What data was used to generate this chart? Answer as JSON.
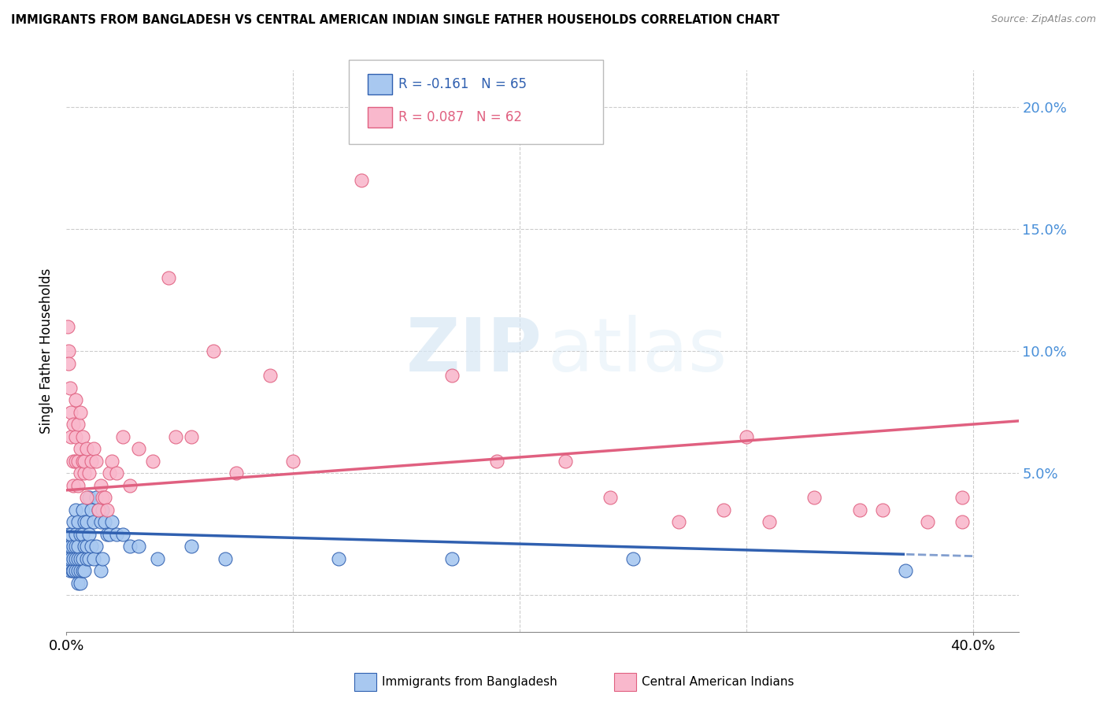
{
  "title": "IMMIGRANTS FROM BANGLADESH VS CENTRAL AMERICAN INDIAN SINGLE FATHER HOUSEHOLDS CORRELATION CHART",
  "source": "Source: ZipAtlas.com",
  "ylabel": "Single Father Households",
  "xlim": [
    0.0,
    0.42
  ],
  "ylim": [
    -0.015,
    0.215
  ],
  "yticks": [
    0.0,
    0.05,
    0.1,
    0.15,
    0.2
  ],
  "ytick_labels": [
    "",
    "5.0%",
    "10.0%",
    "15.0%",
    "20.0%"
  ],
  "xtick_positions": [
    0.0,
    0.4
  ],
  "xtick_labels": [
    "0.0%",
    "40.0%"
  ],
  "blue_color": "#A8C8F0",
  "pink_color": "#F9B8CC",
  "blue_line_color": "#3060B0",
  "pink_line_color": "#E06080",
  "legend_blue_R": "R = -0.161",
  "legend_blue_N": "N = 65",
  "legend_pink_R": "R = 0.087",
  "legend_pink_N": "N = 62",
  "watermark_zip": "ZIP",
  "watermark_atlas": "atlas",
  "blue_scatter_x": [
    0.0005,
    0.001,
    0.001,
    0.0015,
    0.002,
    0.002,
    0.002,
    0.0025,
    0.003,
    0.003,
    0.003,
    0.003,
    0.004,
    0.004,
    0.004,
    0.004,
    0.004,
    0.005,
    0.005,
    0.005,
    0.005,
    0.005,
    0.006,
    0.006,
    0.006,
    0.006,
    0.007,
    0.007,
    0.007,
    0.007,
    0.008,
    0.008,
    0.008,
    0.009,
    0.009,
    0.009,
    0.01,
    0.01,
    0.01,
    0.011,
    0.011,
    0.012,
    0.012,
    0.013,
    0.013,
    0.014,
    0.015,
    0.015,
    0.016,
    0.016,
    0.017,
    0.018,
    0.019,
    0.02,
    0.022,
    0.025,
    0.028,
    0.032,
    0.04,
    0.055,
    0.07,
    0.12,
    0.17,
    0.25,
    0.37
  ],
  "blue_scatter_y": [
    0.015,
    0.02,
    0.025,
    0.01,
    0.015,
    0.02,
    0.025,
    0.01,
    0.01,
    0.015,
    0.02,
    0.03,
    0.01,
    0.015,
    0.02,
    0.025,
    0.035,
    0.005,
    0.01,
    0.015,
    0.02,
    0.03,
    0.005,
    0.01,
    0.015,
    0.025,
    0.01,
    0.015,
    0.025,
    0.035,
    0.01,
    0.02,
    0.03,
    0.015,
    0.02,
    0.03,
    0.015,
    0.025,
    0.04,
    0.02,
    0.035,
    0.015,
    0.03,
    0.02,
    0.04,
    0.035,
    0.01,
    0.03,
    0.015,
    0.035,
    0.03,
    0.025,
    0.025,
    0.03,
    0.025,
    0.025,
    0.02,
    0.02,
    0.015,
    0.02,
    0.015,
    0.015,
    0.015,
    0.015,
    0.01
  ],
  "pink_scatter_x": [
    0.0005,
    0.001,
    0.001,
    0.0015,
    0.002,
    0.002,
    0.003,
    0.003,
    0.003,
    0.004,
    0.004,
    0.004,
    0.005,
    0.005,
    0.005,
    0.006,
    0.006,
    0.006,
    0.007,
    0.007,
    0.008,
    0.008,
    0.009,
    0.009,
    0.01,
    0.011,
    0.012,
    0.013,
    0.014,
    0.015,
    0.016,
    0.017,
    0.018,
    0.019,
    0.02,
    0.022,
    0.025,
    0.028,
    0.032,
    0.038,
    0.048,
    0.065,
    0.09,
    0.13,
    0.19,
    0.24,
    0.29,
    0.33,
    0.36,
    0.38,
    0.395,
    0.22,
    0.27,
    0.31,
    0.35,
    0.395,
    0.17,
    0.1,
    0.045,
    0.055,
    0.075,
    0.3
  ],
  "pink_scatter_y": [
    0.11,
    0.1,
    0.095,
    0.085,
    0.075,
    0.065,
    0.07,
    0.055,
    0.045,
    0.065,
    0.055,
    0.08,
    0.055,
    0.045,
    0.07,
    0.06,
    0.05,
    0.075,
    0.055,
    0.065,
    0.05,
    0.055,
    0.04,
    0.06,
    0.05,
    0.055,
    0.06,
    0.055,
    0.035,
    0.045,
    0.04,
    0.04,
    0.035,
    0.05,
    0.055,
    0.05,
    0.065,
    0.045,
    0.06,
    0.055,
    0.065,
    0.1,
    0.09,
    0.17,
    0.055,
    0.04,
    0.035,
    0.04,
    0.035,
    0.03,
    0.04,
    0.055,
    0.03,
    0.03,
    0.035,
    0.03,
    0.09,
    0.055,
    0.13,
    0.065,
    0.05,
    0.065
  ]
}
